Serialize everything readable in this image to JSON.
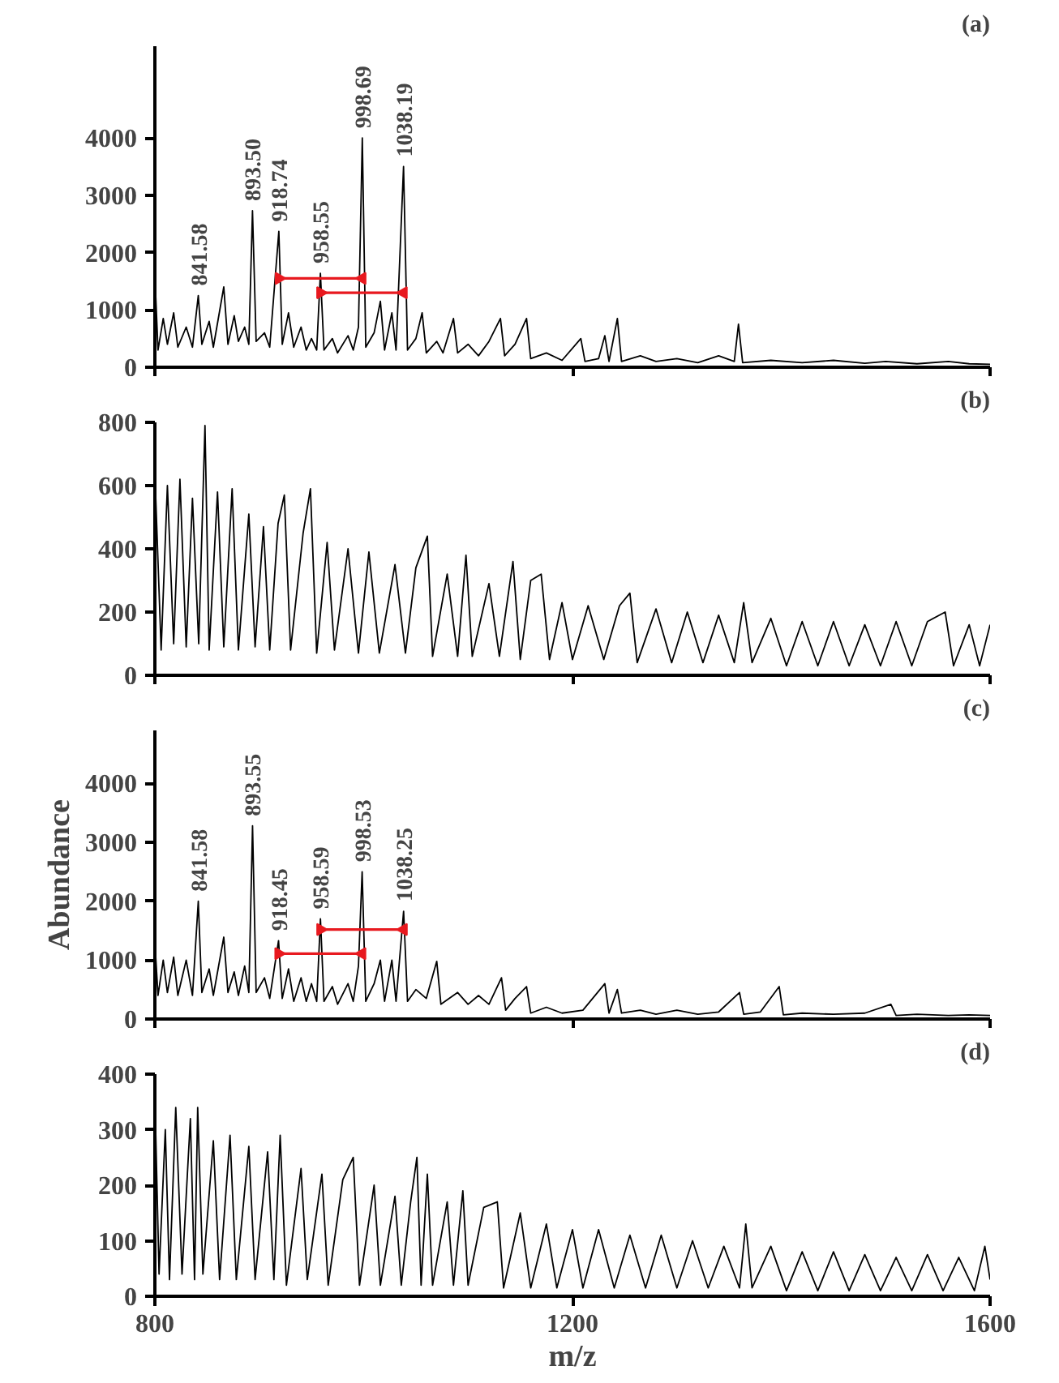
{
  "chart_data": [
    {
      "type": "line",
      "title": "(a)",
      "xlim": [
        800,
        1600
      ],
      "xticks": [
        800,
        1200,
        1600
      ],
      "ylim": [
        0,
        5600
      ],
      "yticks": [
        0,
        1000,
        2000,
        3000,
        4000
      ],
      "tick_labels": "y",
      "grid": false,
      "marker": "none",
      "line_style": "solid",
      "series": [
        {
          "color": "#000000",
          "x": [
            800,
            803,
            808,
            812,
            818,
            822,
            830,
            836,
            841.58,
            845,
            852,
            856,
            866,
            870,
            876,
            880,
            886,
            890,
            893.5,
            897,
            905,
            910,
            918.74,
            922,
            928,
            933,
            940,
            945,
            950,
            955,
            958.55,
            962,
            970,
            975,
            985,
            990,
            995,
            998.69,
            1002,
            1010,
            1016,
            1020,
            1027,
            1031,
            1038.19,
            1042,
            1050,
            1056,
            1060,
            1070,
            1076,
            1086,
            1090,
            1100,
            1110,
            1120,
            1131,
            1135,
            1145,
            1156,
            1160,
            1175,
            1190,
            1208,
            1212,
            1225,
            1231,
            1235,
            1243,
            1247,
            1265,
            1280,
            1300,
            1320,
            1340,
            1355,
            1359,
            1363,
            1390,
            1420,
            1450,
            1480,
            1500,
            1530,
            1560,
            1580,
            1600
          ],
          "values": [
            1600,
            300,
            850,
            400,
            950,
            350,
            700,
            350,
            1250,
            400,
            800,
            350,
            1400,
            400,
            900,
            450,
            700,
            400,
            2730,
            450,
            600,
            350,
            2370,
            400,
            950,
            350,
            700,
            300,
            500,
            300,
            1640,
            300,
            500,
            250,
            550,
            300,
            700,
            4000,
            350,
            600,
            1150,
            300,
            950,
            300,
            3500,
            300,
            500,
            950,
            250,
            450,
            250,
            850,
            250,
            400,
            200,
            450,
            850,
            200,
            400,
            850,
            150,
            250,
            120,
            500,
            100,
            150,
            550,
            100,
            850,
            100,
            200,
            100,
            150,
            80,
            200,
            100,
            750,
            80,
            120,
            80,
            120,
            70,
            100,
            60,
            100,
            60,
            50
          ]
        },
        {
          "color": "#e8191f",
          "marker": "triangle",
          "x": [
            918.74,
            998.69
          ],
          "values": [
            1550,
            1550
          ]
        },
        {
          "color": "#e8191f",
          "marker": "triangle",
          "x": [
            958.55,
            1038.19
          ],
          "values": [
            1300,
            1300
          ]
        }
      ],
      "annotations": [
        {
          "text": "841.58",
          "x": 841.58,
          "y": 1250
        },
        {
          "text": "893.50",
          "x": 893.5,
          "y": 2730
        },
        {
          "text": "918.74",
          "x": 918.74,
          "y": 2370
        },
        {
          "text": "958.55",
          "x": 958.55,
          "y": 1640
        },
        {
          "text": "998.69",
          "x": 998.69,
          "y": 4000
        },
        {
          "text": "1038.19",
          "x": 1038.19,
          "y": 3500
        }
      ]
    },
    {
      "type": "line",
      "title": "(b)",
      "xlim": [
        800,
        1600
      ],
      "xticks": [
        800,
        1200,
        1600
      ],
      "ylim": [
        0,
        800
      ],
      "yticks": [
        0,
        200,
        400,
        600,
        800
      ],
      "tick_labels": "y",
      "grid": false,
      "marker": "none",
      "line_style": "solid",
      "series": [
        {
          "color": "#000000",
          "x": [
            800,
            806,
            812,
            818,
            824,
            830,
            836,
            842,
            848,
            852,
            860,
            866,
            874,
            880,
            890,
            896,
            904,
            910,
            918,
            924,
            930,
            942,
            949,
            955,
            965,
            972,
            985,
            995,
            1005,
            1015,
            1030,
            1040,
            1050,
            1061,
            1066,
            1080,
            1090,
            1098,
            1104,
            1120,
            1130,
            1143,
            1150,
            1160,
            1170,
            1178,
            1190,
            1200,
            1215,
            1230,
            1245,
            1255,
            1262,
            1280,
            1295,
            1310,
            1325,
            1340,
            1355,
            1364,
            1372,
            1390,
            1405,
            1420,
            1435,
            1450,
            1465,
            1480,
            1495,
            1510,
            1525,
            1540,
            1557,
            1565,
            1580,
            1590,
            1600
          ],
          "values": [
            640,
            80,
            600,
            100,
            620,
            90,
            560,
            100,
            790,
            80,
            580,
            90,
            590,
            80,
            510,
            90,
            470,
            80,
            480,
            570,
            80,
            450,
            590,
            70,
            420,
            80,
            400,
            70,
            390,
            70,
            350,
            70,
            340,
            440,
            60,
            320,
            60,
            380,
            60,
            290,
            60,
            360,
            50,
            300,
            320,
            50,
            230,
            50,
            220,
            50,
            220,
            260,
            40,
            210,
            40,
            200,
            40,
            190,
            40,
            230,
            40,
            180,
            30,
            170,
            30,
            170,
            30,
            160,
            30,
            170,
            30,
            170,
            200,
            30,
            160,
            30,
            160
          ]
        }
      ]
    },
    {
      "type": "line",
      "title": "(c)",
      "ylabel": "Abundance",
      "xlim": [
        800,
        1600
      ],
      "xticks": [
        800,
        1200,
        1600
      ],
      "ylim": [
        0,
        4900
      ],
      "yticks": [
        0,
        1000,
        2000,
        3000,
        4000
      ],
      "tick_labels": "y",
      "grid": false,
      "marker": "none",
      "line_style": "solid",
      "series": [
        {
          "color": "#000000",
          "x": [
            800,
            803,
            808,
            812,
            818,
            822,
            830,
            836,
            841.58,
            845,
            852,
            856,
            866,
            870,
            876,
            880,
            886,
            890,
            893.55,
            897,
            905,
            910,
            918.45,
            922,
            928,
            933,
            940,
            945,
            950,
            955,
            958.59,
            962,
            970,
            975,
            985,
            990,
            995,
            998.53,
            1002,
            1010,
            1016,
            1020,
            1027,
            1031,
            1038.25,
            1042,
            1050,
            1060,
            1070,
            1074,
            1090,
            1100,
            1110,
            1120,
            1132,
            1136,
            1145,
            1156,
            1160,
            1175,
            1190,
            1210,
            1231,
            1235,
            1243,
            1247,
            1265,
            1280,
            1300,
            1320,
            1340,
            1360,
            1364,
            1380,
            1398,
            1402,
            1420,
            1450,
            1480,
            1505,
            1510,
            1530,
            1560,
            1580,
            1600
          ],
          "values": [
            1300,
            400,
            1000,
            450,
            1050,
            400,
            1000,
            400,
            2000,
            450,
            850,
            400,
            1390,
            450,
            800,
            400,
            900,
            450,
            3280,
            450,
            700,
            350,
            1330,
            350,
            850,
            300,
            700,
            300,
            600,
            300,
            1700,
            300,
            550,
            250,
            600,
            300,
            900,
            2500,
            300,
            600,
            1000,
            300,
            1000,
            300,
            1830,
            300,
            500,
            350,
            980,
            250,
            450,
            250,
            400,
            250,
            700,
            150,
            350,
            550,
            100,
            200,
            100,
            150,
            600,
            100,
            500,
            100,
            150,
            80,
            150,
            80,
            120,
            450,
            80,
            120,
            550,
            70,
            100,
            80,
            100,
            250,
            60,
            80,
            60,
            70,
            60
          ]
        },
        {
          "color": "#e8191f",
          "marker": "triangle",
          "x": [
            918.45,
            998.53
          ],
          "values": [
            1110,
            1110
          ]
        },
        {
          "color": "#e8191f",
          "marker": "triangle",
          "x": [
            958.59,
            1038.25
          ],
          "values": [
            1520,
            1520
          ]
        }
      ],
      "annotations": [
        {
          "text": "841.58",
          "x": 841.58,
          "y": 2000
        },
        {
          "text": "893.55",
          "x": 893.55,
          "y": 3280
        },
        {
          "text": "918.45",
          "x": 918.45,
          "y": 1330
        },
        {
          "text": "958.59",
          "x": 958.59,
          "y": 1700
        },
        {
          "text": "998.53",
          "x": 998.53,
          "y": 2500
        },
        {
          "text": "1038.25",
          "x": 1038.25,
          "y": 1830
        }
      ]
    },
    {
      "type": "line",
      "title": "(d)",
      "xlabel": "m/z",
      "xlim": [
        800,
        1600
      ],
      "xticks": [
        800,
        1200,
        1600
      ],
      "ylim": [
        0,
        400
      ],
      "yticks": [
        0,
        100,
        200,
        300,
        400
      ],
      "grid": false,
      "marker": "none",
      "line_style": "solid",
      "series": [
        {
          "color": "#000000",
          "x": [
            800,
            804,
            810,
            814,
            820,
            826,
            834,
            838,
            841,
            846,
            856,
            862,
            872,
            878,
            890,
            896,
            908,
            914,
            920,
            926,
            940,
            946,
            960,
            966,
            980,
            990,
            996,
            1010,
            1016,
            1030,
            1036,
            1045,
            1051,
            1055,
            1061,
            1066,
            1080,
            1086,
            1095,
            1100,
            1115,
            1128,
            1134,
            1150,
            1160,
            1175,
            1185,
            1200,
            1210,
            1225,
            1240,
            1255,
            1270,
            1285,
            1300,
            1315,
            1330,
            1345,
            1360,
            1366,
            1372,
            1390,
            1405,
            1420,
            1435,
            1450,
            1465,
            1480,
            1495,
            1510,
            1525,
            1540,
            1555,
            1570,
            1585,
            1595,
            1600
          ],
          "values": [
            360,
            40,
            300,
            30,
            340,
            40,
            320,
            30,
            340,
            40,
            280,
            30,
            290,
            30,
            270,
            30,
            260,
            30,
            290,
            20,
            230,
            30,
            220,
            20,
            210,
            250,
            20,
            200,
            20,
            180,
            20,
            170,
            250,
            20,
            220,
            20,
            170,
            20,
            190,
            20,
            160,
            170,
            15,
            150,
            15,
            130,
            15,
            120,
            15,
            120,
            15,
            110,
            15,
            110,
            15,
            100,
            15,
            90,
            15,
            130,
            15,
            90,
            10,
            80,
            10,
            80,
            10,
            75,
            10,
            70,
            10,
            75,
            10,
            70,
            10,
            90,
            30
          ]
        }
      ]
    }
  ]
}
